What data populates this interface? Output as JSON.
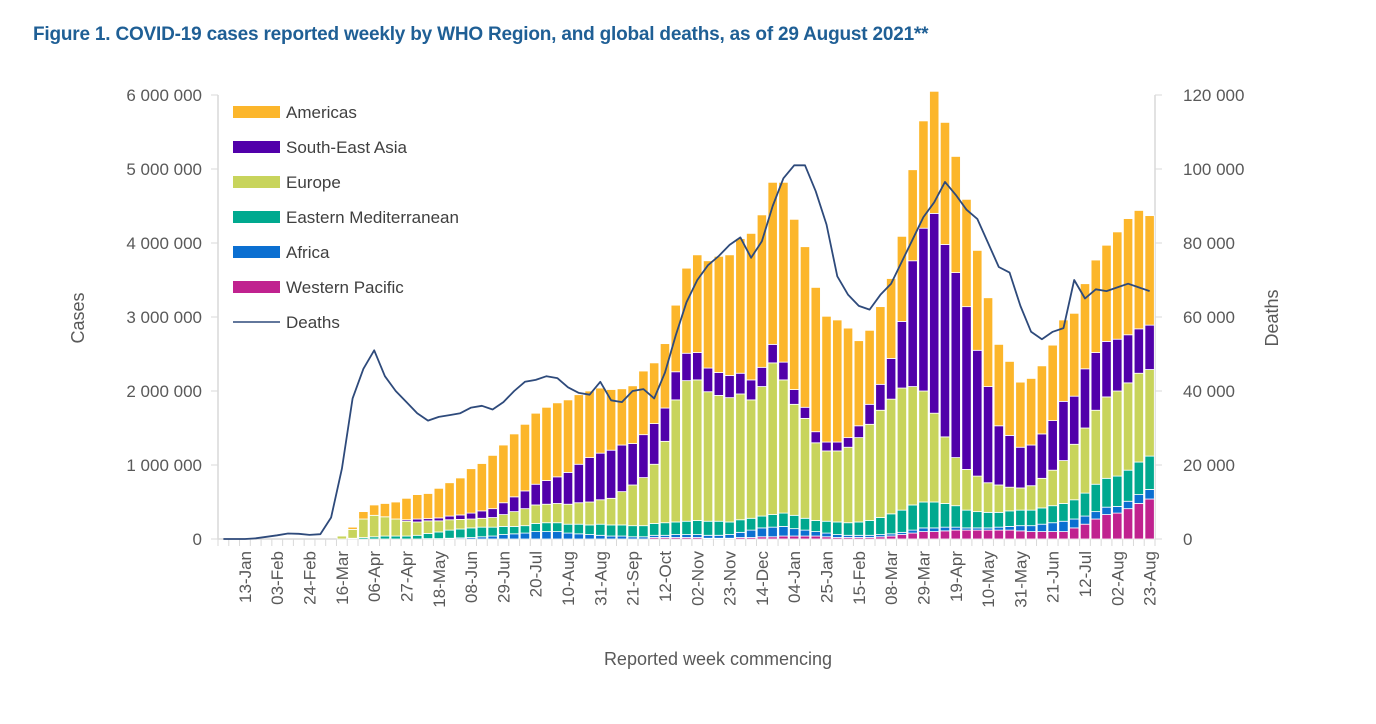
{
  "chart_data": {
    "type": "bar",
    "subtype": "stacked-bar-with-line",
    "title": "Figure 1. COVID-19 cases reported weekly by WHO Region, and global deaths, as of 29 August 2021**",
    "xlabel": "Reported week commencing",
    "ylabel": "Cases",
    "y2label": "Deaths",
    "ylim": [
      0,
      6000000
    ],
    "y2lim": [
      0,
      120000
    ],
    "yticks": [
      "0",
      "1 000 000",
      "2 000 000",
      "3 000 000",
      "4 000 000",
      "5 000 000",
      "6 000 000"
    ],
    "y2ticks": [
      "0",
      "20 000",
      "40 000",
      "60 000",
      "80 000",
      "100 000",
      "120 000"
    ],
    "grid": false,
    "legend_position": "top-left",
    "x_tick_labels": [
      "13-Jan",
      "03-Feb",
      "24-Feb",
      "16-Mar",
      "06-Apr",
      "27-Apr",
      "18-May",
      "08-Jun",
      "29-Jun",
      "20-Jul",
      "10-Aug",
      "31-Aug",
      "21-Sep",
      "12-Oct",
      "02-Nov",
      "23-Nov",
      "14-Dec",
      "04-Jan",
      "25-Jan",
      "15-Feb",
      "08-Mar",
      "29-Mar",
      "19-Apr",
      "10-May",
      "31-May",
      "21-Jun",
      "12-Jul",
      "02-Aug",
      "23-Aug"
    ],
    "x_tick_label_first_week_index": 2,
    "x_tick_label_every": 3,
    "weeks_count": 87,
    "series": [
      {
        "name": "Western Pacific",
        "color": "#c0228f",
        "values": [
          0,
          0,
          0,
          0,
          0,
          0,
          0,
          0,
          0,
          0,
          0,
          0,
          0,
          0,
          0,
          0,
          0,
          0,
          0,
          0,
          0,
          0,
          0,
          0,
          0,
          0,
          0,
          0,
          0,
          0,
          0,
          0,
          0,
          0,
          0,
          0,
          0,
          0,
          0,
          0,
          20000,
          20000,
          20000,
          20000,
          20000,
          10000,
          10000,
          10000,
          20000,
          20000,
          30000,
          30000,
          40000,
          40000,
          40000,
          40000,
          30000,
          20000,
          20000,
          20000,
          20000,
          30000,
          40000,
          60000,
          80000,
          100000,
          100000,
          110000,
          120000,
          120000,
          120000,
          120000,
          120000,
          120000,
          110000,
          100000,
          100000,
          100000,
          100000,
          150000,
          200000,
          270000,
          330000,
          350000,
          410000,
          480000,
          540000
        ]
      },
      {
        "name": "Africa",
        "color": "#0b6fd1",
        "values": [
          0,
          0,
          0,
          0,
          0,
          0,
          0,
          0,
          0,
          0,
          0,
          0,
          0,
          0,
          0,
          0,
          0,
          0,
          0,
          5000,
          5000,
          10000,
          15000,
          20000,
          30000,
          40000,
          60000,
          70000,
          80000,
          100000,
          100000,
          100000,
          80000,
          70000,
          60000,
          50000,
          40000,
          40000,
          30000,
          30000,
          30000,
          30000,
          40000,
          40000,
          40000,
          40000,
          40000,
          50000,
          70000,
          100000,
          120000,
          130000,
          130000,
          100000,
          80000,
          60000,
          50000,
          40000,
          30000,
          30000,
          30000,
          30000,
          30000,
          30000,
          40000,
          50000,
          50000,
          50000,
          40000,
          30000,
          30000,
          30000,
          40000,
          50000,
          70000,
          80000,
          100000,
          120000,
          140000,
          120000,
          110000,
          100000,
          100000,
          90000,
          100000,
          120000,
          130000
        ]
      },
      {
        "name": "Eastern Mediterranean",
        "color": "#00a98f",
        "values": [
          0,
          0,
          0,
          0,
          0,
          0,
          0,
          0,
          0,
          0,
          0,
          0,
          10000,
          20000,
          30000,
          40000,
          40000,
          40000,
          50000,
          70000,
          90000,
          110000,
          120000,
          130000,
          130000,
          120000,
          110000,
          100000,
          100000,
          110000,
          120000,
          120000,
          120000,
          130000,
          130000,
          150000,
          150000,
          150000,
          150000,
          150000,
          160000,
          170000,
          170000,
          180000,
          190000,
          190000,
          190000,
          170000,
          170000,
          160000,
          160000,
          170000,
          180000,
          180000,
          160000,
          150000,
          160000,
          170000,
          170000,
          180000,
          200000,
          230000,
          270000,
          300000,
          340000,
          350000,
          350000,
          320000,
          290000,
          240000,
          220000,
          210000,
          200000,
          210000,
          210000,
          210000,
          220000,
          230000,
          240000,
          260000,
          310000,
          370000,
          390000,
          410000,
          420000,
          440000,
          450000
        ]
      },
      {
        "name": "Europe",
        "color": "#c8d45c",
        "values": [
          0,
          0,
          0,
          0,
          0,
          0,
          0,
          0,
          0,
          0,
          0,
          40000,
          120000,
          250000,
          290000,
          260000,
          230000,
          200000,
          180000,
          170000,
          150000,
          140000,
          130000,
          120000,
          120000,
          130000,
          160000,
          200000,
          230000,
          250000,
          250000,
          260000,
          270000,
          290000,
          310000,
          330000,
          360000,
          450000,
          550000,
          650000,
          800000,
          1100000,
          1650000,
          1900000,
          1900000,
          1750000,
          1700000,
          1680000,
          1700000,
          1600000,
          1750000,
          2050000,
          1800000,
          1500000,
          1350000,
          1050000,
          950000,
          960000,
          1020000,
          1140000,
          1300000,
          1450000,
          1550000,
          1650000,
          1600000,
          1500000,
          1200000,
          900000,
          650000,
          550000,
          480000,
          400000,
          370000,
          320000,
          300000,
          330000,
          400000,
          480000,
          580000,
          750000,
          880000,
          1000000,
          1100000,
          1150000,
          1180000,
          1200000,
          1170000
        ]
      },
      {
        "name": "South-East Asia",
        "color": "#5100aa",
        "values": [
          0,
          0,
          0,
          0,
          0,
          0,
          0,
          0,
          0,
          0,
          0,
          0,
          0,
          0,
          0,
          0,
          0,
          20000,
          40000,
          30000,
          40000,
          50000,
          60000,
          80000,
          100000,
          120000,
          160000,
          200000,
          240000,
          280000,
          320000,
          360000,
          430000,
          520000,
          600000,
          630000,
          650000,
          630000,
          560000,
          580000,
          550000,
          450000,
          380000,
          370000,
          370000,
          320000,
          310000,
          300000,
          280000,
          270000,
          260000,
          250000,
          240000,
          200000,
          150000,
          150000,
          120000,
          120000,
          130000,
          160000,
          270000,
          350000,
          550000,
          900000,
          1700000,
          2200000,
          2700000,
          2600000,
          2500000,
          2200000,
          1700000,
          1300000,
          800000,
          700000,
          550000,
          550000,
          600000,
          670000,
          800000,
          650000,
          800000,
          780000,
          750000,
          700000,
          650000,
          600000,
          600000
        ]
      },
      {
        "name": "Americas",
        "color": "#fcb62b",
        "values": [
          0,
          0,
          0,
          0,
          0,
          0,
          0,
          0,
          0,
          0,
          0,
          0,
          30000,
          100000,
          140000,
          180000,
          230000,
          290000,
          330000,
          340000,
          400000,
          450000,
          500000,
          600000,
          640000,
          720000,
          780000,
          850000,
          900000,
          960000,
          990000,
          1000000,
          980000,
          940000,
          900000,
          880000,
          820000,
          760000,
          780000,
          860000,
          820000,
          870000,
          900000,
          1150000,
          1320000,
          1450000,
          1570000,
          1630000,
          1820000,
          1980000,
          2060000,
          2190000,
          2430000,
          2300000,
          2170000,
          1950000,
          1700000,
          1650000,
          1480000,
          1150000,
          1000000,
          1050000,
          1080000,
          1150000,
          1230000,
          1450000,
          1650000,
          1650000,
          1570000,
          1450000,
          1350000,
          1200000,
          1100000,
          1000000,
          880000,
          900000,
          920000,
          1020000,
          1100000,
          1120000,
          1150000,
          1250000,
          1300000,
          1450000,
          1570000,
          1600000,
          1480000
        ]
      },
      {
        "name": "Deaths",
        "color": "#2e4a7b",
        "type": "line",
        "axis": "right",
        "values": [
          0,
          0,
          0,
          200,
          600,
          1000,
          1500,
          1400,
          1100,
          1300,
          5800,
          19000,
          38000,
          46000,
          51000,
          44000,
          40000,
          37000,
          34000,
          32000,
          33000,
          33500,
          34000,
          35500,
          36000,
          35000,
          37000,
          40000,
          42500,
          43000,
          44000,
          43500,
          41000,
          39500,
          39000,
          42500,
          37500,
          37000,
          40000,
          40500,
          38000,
          45000,
          55000,
          64000,
          70000,
          74000,
          76500,
          79500,
          81500,
          76000,
          80500,
          90000,
          97500,
          101000,
          101000,
          94000,
          85000,
          71000,
          66000,
          63000,
          62000,
          66000,
          69000,
          75000,
          81000,
          87000,
          91000,
          96500,
          93000,
          89000,
          86500,
          80000,
          73500,
          72000,
          63000,
          56000,
          54000,
          56000,
          57000,
          70000,
          65000,
          67500,
          67000,
          68000,
          69000,
          68000,
          67000
        ]
      }
    ]
  }
}
